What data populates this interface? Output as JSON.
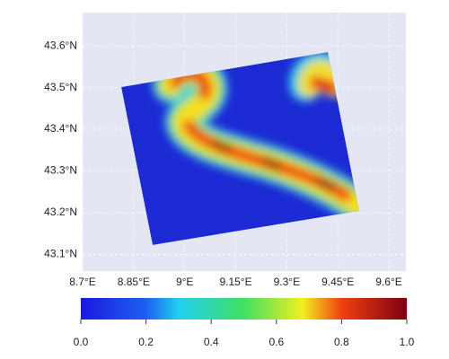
{
  "map": {
    "xlim": [
      8.7,
      9.65
    ],
    "ylim": [
      43.06,
      43.68
    ],
    "xticks": [
      {
        "value": 8.7,
        "label": "8.7°E"
      },
      {
        "value": 8.85,
        "label": "8.85°E"
      },
      {
        "value": 9,
        "label": "9°E"
      },
      {
        "value": 9.15,
        "label": "9.15°E"
      },
      {
        "value": 9.3,
        "label": "9.3°E"
      },
      {
        "value": 9.45,
        "label": "9.45°E"
      },
      {
        "value": 9.6,
        "label": "9.6°E"
      }
    ],
    "yticks": [
      {
        "value": 43.1,
        "label": "43.1°N"
      },
      {
        "value": 43.2,
        "label": "43.2°N"
      },
      {
        "value": 43.3,
        "label": "43.3°N"
      },
      {
        "value": 43.4,
        "label": "43.4°N"
      },
      {
        "value": 43.5,
        "label": "43.5°N"
      },
      {
        "value": 43.6,
        "label": "43.6°N"
      }
    ]
  },
  "colorbar": {
    "lim": [
      0,
      1
    ],
    "ticks": [
      {
        "value": 0,
        "label": "0.0"
      },
      0.2,
      0.4,
      0.6,
      0.8,
      {
        "value": 1,
        "label": "1.0"
      }
    ]
  }
}
